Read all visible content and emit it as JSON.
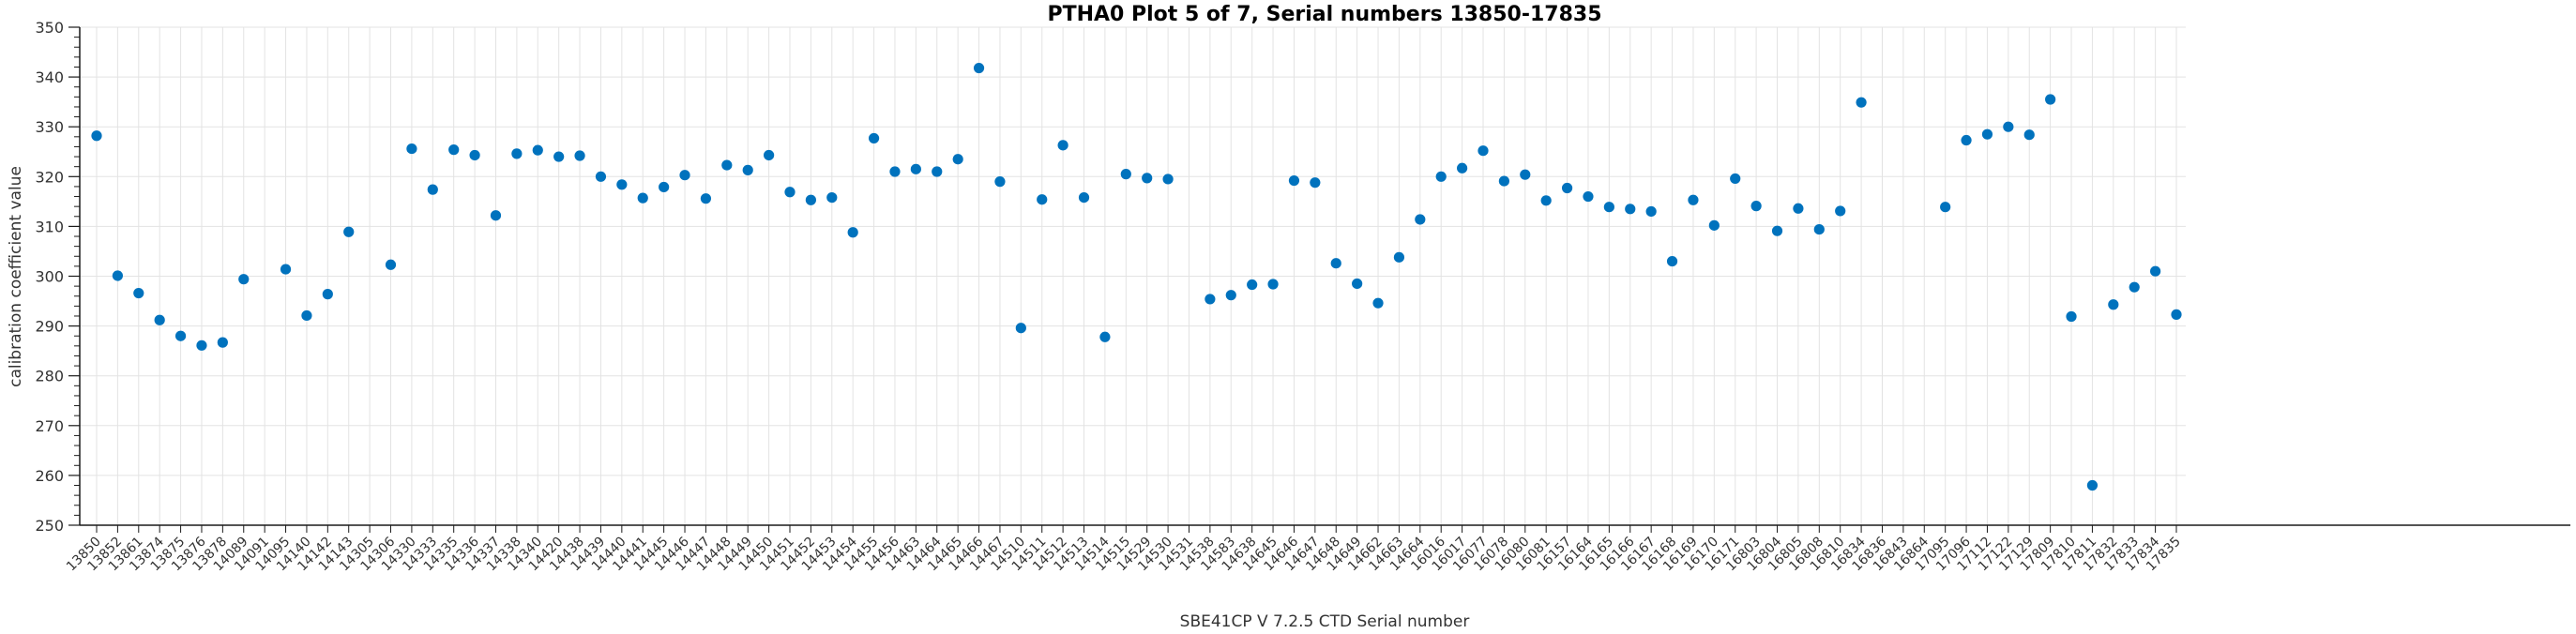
{
  "chart_data": {
    "type": "scatter",
    "title": "PTHA0 Plot 5 of 7, Serial numbers 13850-17835",
    "xlabel": "SBE41CP V 7.2.5 CTD Serial number",
    "ylabel": "calibration coefficient value",
    "ylim": [
      250,
      350
    ],
    "y_ticks": [
      250,
      260,
      270,
      280,
      290,
      300,
      310,
      320,
      330,
      340,
      350
    ],
    "y_minor_tick_step": 2,
    "grid": true,
    "legend": "none",
    "marker_color": "#0072BD",
    "grid_color": "#e3e3e3",
    "axis_color": "#1a1a1a",
    "tick_label_color": "#333333",
    "categories": [
      "13850",
      "13852",
      "13861",
      "13874",
      "13875",
      "13876",
      "13878",
      "14089",
      "14091",
      "14095",
      "14140",
      "14142",
      "14143",
      "14305",
      "14306",
      "14330",
      "14333",
      "14335",
      "14336",
      "14337",
      "14338",
      "14340",
      "14420",
      "14438",
      "14439",
      "14440",
      "14441",
      "14445",
      "14446",
      "14447",
      "14448",
      "14449",
      "14450",
      "14451",
      "14452",
      "14453",
      "14454",
      "14455",
      "14456",
      "14463",
      "14464",
      "14465",
      "14466",
      "14467",
      "14510",
      "14511",
      "14512",
      "14513",
      "14514",
      "14515",
      "14529",
      "14530",
      "14531",
      "14538",
      "14583",
      "14638",
      "14645",
      "14646",
      "14647",
      "14648",
      "14649",
      "14662",
      "14663",
      "14664",
      "16016",
      "16017",
      "16077",
      "16078",
      "16080",
      "16081",
      "16157",
      "16164",
      "16165",
      "16166",
      "16167",
      "16168",
      "16169",
      "16170",
      "16171",
      "16803",
      "16804",
      "16805",
      "16808",
      "16810",
      "16834",
      "16836",
      "16843",
      "16864",
      "17095",
      "17096",
      "17112",
      "17122",
      "17129",
      "17809",
      "17810",
      "17811",
      "17832",
      "17833",
      "17834",
      "17835"
    ],
    "values": [
      328.2,
      300.1,
      296.6,
      291.2,
      288.0,
      286.1,
      286.7,
      299.4,
      null,
      301.4,
      292.1,
      296.4,
      308.9,
      null,
      302.3,
      325.6,
      317.4,
      325.4,
      324.3,
      312.2,
      324.6,
      325.3,
      324.0,
      324.2,
      320.0,
      318.4,
      315.7,
      317.9,
      320.3,
      315.6,
      322.3,
      321.3,
      324.3,
      316.9,
      315.3,
      315.8,
      308.8,
      327.7,
      321.0,
      321.5,
      321.0,
      323.5,
      341.8,
      319.0,
      289.6,
      315.4,
      326.3,
      315.8,
      287.8,
      320.5,
      319.7,
      319.5,
      null,
      295.4,
      296.2,
      298.3,
      298.4,
      319.2,
      318.8,
      302.6,
      298.5,
      294.6,
      303.8,
      311.4,
      320.0,
      321.7,
      325.2,
      319.1,
      320.4,
      315.2,
      317.7,
      316.0,
      313.9,
      313.5,
      313.0,
      303.0,
      315.3,
      310.2,
      319.6,
      314.1,
      309.1,
      313.6,
      309.4,
      313.1,
      334.9,
      null,
      null,
      null,
      313.9,
      327.3,
      328.5,
      330.0,
      328.4,
      335.5,
      291.9,
      258.0,
      294.3,
      297.8,
      301.0,
      292.3
    ]
  }
}
